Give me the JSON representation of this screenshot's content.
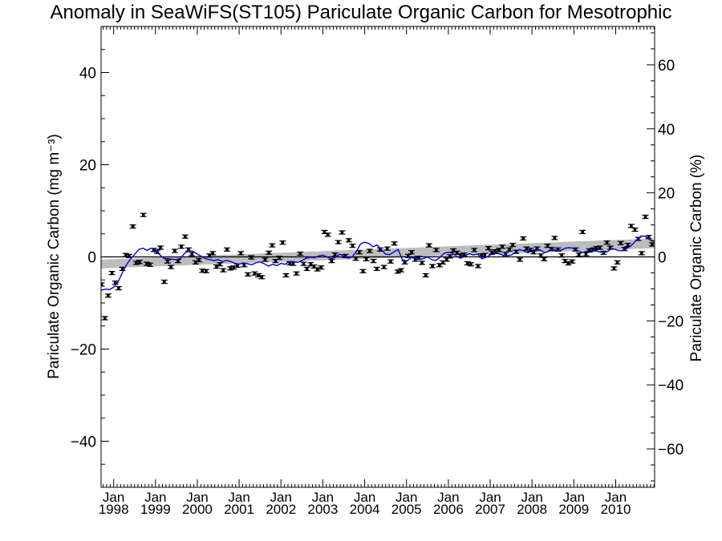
{
  "chart_data": {
    "type": "line",
    "title": "Anomaly in SeaWiFS(ST105) Pariculate Organic Carbon for Mesotrophic",
    "ylabel": "Pariculate Organic Carbon (mg m⁻³)",
    "ylabel_right": "Pariculate Organic Carbon (%)",
    "xlim": [
      1997.7,
      2010.93
    ],
    "ylim": [
      -50,
      50
    ],
    "ylim_right": [
      -72,
      72
    ],
    "yticks": [
      -40,
      -20,
      0,
      20,
      40
    ],
    "yticks_right": [
      -60,
      -40,
      -20,
      0,
      20,
      40,
      60
    ],
    "xtick_labels": [
      {
        "x": 1998.0,
        "month": "Jan",
        "year": "1998"
      },
      {
        "x": 1999.0,
        "month": "Jan",
        "year": "1999"
      },
      {
        "x": 2000.0,
        "month": "Jan",
        "year": "2000"
      },
      {
        "x": 2001.0,
        "month": "Jan",
        "year": "2001"
      },
      {
        "x": 2002.0,
        "month": "Jan",
        "year": "2002"
      },
      {
        "x": 2003.0,
        "month": "Jan",
        "year": "2003"
      },
      {
        "x": 2004.0,
        "month": "Jan",
        "year": "2004"
      },
      {
        "x": 2005.0,
        "month": "Jan",
        "year": "2005"
      },
      {
        "x": 2006.0,
        "month": "Jan",
        "year": "2006"
      },
      {
        "x": 2007.0,
        "month": "Jan",
        "year": "2007"
      },
      {
        "x": 2008.0,
        "month": "Jan",
        "year": "2008"
      },
      {
        "x": 2009.0,
        "month": "Jan",
        "year": "2009"
      },
      {
        "x": 2010.0,
        "month": "Jan",
        "year": "2010"
      }
    ],
    "trend_band": {
      "x": [
        1997.7,
        2010.93
      ],
      "lower": [
        -2.5,
        1.9
      ],
      "upper": [
        -0.6,
        4.0
      ]
    },
    "zero_line": 0,
    "series": [
      {
        "role": "monthly-anomalies-with-error-bars",
        "color": "#000000",
        "x": [
          1997.71,
          1997.79,
          1997.87,
          1997.96,
          1998.04,
          1998.12,
          1998.21,
          1998.29,
          1998.37,
          1998.46,
          1998.54,
          1998.62,
          1998.71,
          1998.79,
          1998.87,
          1998.96,
          1999.04,
          1999.12,
          1999.21,
          1999.29,
          1999.37,
          1999.46,
          1999.54,
          1999.62,
          1999.71,
          1999.79,
          1999.87,
          1999.96,
          2000.04,
          2000.12,
          2000.21,
          2000.29,
          2000.37,
          2000.46,
          2000.54,
          2000.62,
          2000.71,
          2000.79,
          2000.87,
          2000.96,
          2001.04,
          2001.12,
          2001.21,
          2001.29,
          2001.37,
          2001.46,
          2001.54,
          2001.62,
          2001.71,
          2001.79,
          2001.87,
          2001.96,
          2002.04,
          2002.12,
          2002.21,
          2002.29,
          2002.37,
          2002.46,
          2002.54,
          2002.62,
          2002.71,
          2002.79,
          2002.87,
          2002.96,
          2003.04,
          2003.12,
          2003.21,
          2003.29,
          2003.37,
          2003.46,
          2003.54,
          2003.62,
          2003.71,
          2003.79,
          2003.87,
          2003.96,
          2004.04,
          2004.12,
          2004.21,
          2004.29,
          2004.37,
          2004.46,
          2004.54,
          2004.62,
          2004.71,
          2004.79,
          2004.87,
          2004.96,
          2005.04,
          2005.12,
          2005.21,
          2005.29,
          2005.37,
          2005.46,
          2005.54,
          2005.62,
          2005.71,
          2005.79,
          2005.87,
          2005.96,
          2006.04,
          2006.12,
          2006.21,
          2006.29,
          2006.37,
          2006.46,
          2006.54,
          2006.62,
          2006.71,
          2006.79,
          2006.87,
          2006.96,
          2007.04,
          2007.12,
          2007.21,
          2007.29,
          2007.37,
          2007.46,
          2007.54,
          2007.62,
          2007.71,
          2007.79,
          2007.87,
          2007.96,
          2008.04,
          2008.12,
          2008.21,
          2008.29,
          2008.37,
          2008.46,
          2008.54,
          2008.62,
          2008.71,
          2008.79,
          2008.87,
          2008.96,
          2009.04,
          2009.12,
          2009.21,
          2009.29,
          2009.37,
          2009.46,
          2009.54,
          2009.62,
          2009.71,
          2009.79,
          2009.87,
          2009.96,
          2010.04,
          2010.12,
          2010.21,
          2010.29,
          2010.37,
          2010.46,
          2010.54,
          2010.62,
          2010.71,
          2010.79,
          2010.87
        ],
        "values": [
          -6.0,
          -13.3,
          -8.4,
          -3.5,
          -5.6,
          -6.8,
          -2.6,
          0.4,
          0.2,
          6.6,
          -1.3,
          -1.1,
          9.1,
          -1.5,
          -1.7,
          1.5,
          1.1,
          2.0,
          -5.4,
          -1.0,
          -2.2,
          1.3,
          -0.9,
          2.2,
          4.4,
          1.6,
          0.6,
          -1.2,
          -0.7,
          -3.0,
          -3.1,
          0.3,
          0.8,
          -2.1,
          -1.6,
          -2.9,
          1.6,
          -2.5,
          -2.3,
          -1.9,
          0.8,
          -1.8,
          -3.8,
          -0.1,
          -3.6,
          -4.0,
          -4.4,
          -0.6,
          0.9,
          2.5,
          -0.9,
          -0.2,
          3.1,
          -4.0,
          -1.4,
          -1.5,
          -3.6,
          0.7,
          -1.5,
          -2.6,
          -1.6,
          -2.1,
          -2.7,
          -2.3,
          5.4,
          4.8,
          -0.9,
          0.5,
          3.2,
          5.3,
          0.2,
          3.6,
          2.4,
          -0.4,
          1.0,
          -3.1,
          -0.5,
          1.3,
          -0.9,
          -2.6,
          1.6,
          -2.2,
          1.8,
          -1.0,
          2.9,
          -3.2,
          -2.9,
          -1.2,
          0.2,
          1.0,
          -0.6,
          -0.2,
          -1.3,
          -4.0,
          2.5,
          -2.0,
          1.5,
          -1.8,
          -1.2,
          -0.6,
          0.1,
          1.4,
          0.9,
          0.3,
          0.5,
          -1.4,
          -1.6,
          1.5,
          -2.0,
          0.3,
          0.4,
          1.9,
          0.9,
          1.2,
          1.5,
          2.2,
          0.6,
          1.6,
          2.6,
          1.1,
          -0.6,
          4.0,
          1.8,
          1.5,
          1.0,
          1.8,
          0.3,
          -0.5,
          2.4,
          1.7,
          4.1,
          1.6,
          0.3,
          -0.9,
          -1.4,
          -1.0,
          1.6,
          0.5,
          5.4,
          0.6,
          1.4,
          1.6,
          1.9,
          2.0,
          0.9,
          3.1,
          2.0,
          -2.5,
          -1.2,
          3.0,
          1.7,
          2.6,
          6.7,
          5.9,
          3.9,
          0.8,
          8.7,
          4.3,
          2.7
        ],
        "error": 0.35
      },
      {
        "role": "smoothed-anomaly",
        "color": "#0000e0",
        "x": [
          1997.71,
          1997.8,
          1997.9,
          1998.0,
          1998.1,
          1998.2,
          1998.3,
          1998.4,
          1998.5,
          1998.6,
          1998.7,
          1998.8,
          1998.9,
          1999.0,
          1999.1,
          1999.2,
          1999.3,
          1999.4,
          1999.5,
          1999.6,
          1999.7,
          1999.8,
          1999.9,
          2000.0,
          2000.1,
          2000.2,
          2000.3,
          2000.4,
          2000.5,
          2000.6,
          2000.7,
          2000.8,
          2000.9,
          2001.0,
          2001.1,
          2001.2,
          2001.3,
          2001.4,
          2001.5,
          2001.6,
          2001.7,
          2001.8,
          2001.9,
          2002.0,
          2002.1,
          2002.2,
          2002.3,
          2002.4,
          2002.5,
          2002.6,
          2002.7,
          2002.8,
          2002.9,
          2003.0,
          2003.1,
          2003.2,
          2003.3,
          2003.4,
          2003.5,
          2003.6,
          2003.7,
          2003.8,
          2003.9,
          2004.0,
          2004.1,
          2004.2,
          2004.3,
          2004.4,
          2004.5,
          2004.6,
          2004.7,
          2004.8,
          2004.9,
          2005.0,
          2005.1,
          2005.2,
          2005.3,
          2005.4,
          2005.5,
          2005.6,
          2005.7,
          2005.8,
          2005.9,
          2006.0,
          2006.1,
          2006.2,
          2006.3,
          2006.4,
          2006.5,
          2006.6,
          2006.7,
          2006.8,
          2006.9,
          2007.0,
          2007.1,
          2007.2,
          2007.3,
          2007.4,
          2007.5,
          2007.6,
          2007.7,
          2007.8,
          2007.9,
          2008.0,
          2008.1,
          2008.2,
          2008.3,
          2008.4,
          2008.5,
          2008.6,
          2008.7,
          2008.8,
          2008.9,
          2009.0,
          2009.1,
          2009.2,
          2009.3,
          2009.4,
          2009.5,
          2009.6,
          2009.7,
          2009.8,
          2009.9,
          2010.0,
          2010.1,
          2010.2,
          2010.3,
          2010.4,
          2010.5,
          2010.6,
          2010.7,
          2010.8,
          2010.9
        ],
        "values": [
          -7.2,
          -7.0,
          -7.1,
          -6.6,
          -5.5,
          -3.6,
          -1.8,
          -0.5,
          0.5,
          1.6,
          1.9,
          1.4,
          1.9,
          1.6,
          0.5,
          -0.3,
          -0.4,
          -0.5,
          -0.6,
          -0.3,
          0.8,
          1.3,
          1.2,
          0.6,
          0.1,
          -0.4,
          -0.6,
          -0.8,
          -0.6,
          -1.0,
          -0.8,
          -1.0,
          -1.4,
          -1.6,
          -1.3,
          -1.5,
          -1.7,
          -1.3,
          -1.1,
          -1.5,
          -2.0,
          -1.6,
          -1.9,
          -1.4,
          -1.6,
          -1.0,
          -1.0,
          -1.2,
          -0.8,
          -0.3,
          -0.1,
          -0.2,
          0.2,
          0.4,
          0.0,
          -0.4,
          -0.1,
          0.6,
          0.2,
          -0.3,
          0.0,
          1.1,
          2.8,
          3.2,
          2.9,
          2.2,
          2.6,
          1.6,
          0.6,
          0.5,
          1.1,
          1.6,
          -0.6,
          -0.9,
          -0.3,
          0.1,
          -0.5,
          -0.4,
          0.0,
          -0.6,
          -0.8,
          -0.1,
          0.8,
          1.0,
          0.8,
          0.1,
          -0.3,
          0.3,
          0.7,
          0.4,
          0.6,
          -0.4,
          -0.1,
          0.4,
          0.8,
          0.7,
          0.4,
          0.3,
          0.4,
          0.9,
          1.6,
          1.3,
          0.9,
          1.3,
          1.7,
          1.5,
          0.9,
          1.2,
          1.7,
          1.3,
          1.5,
          1.9,
          2.0,
          1.8,
          1.3,
          1.0,
          1.2,
          1.6,
          1.4,
          1.1,
          1.0,
          1.1,
          1.8,
          1.6,
          1.3,
          1.5,
          2.0,
          2.7,
          3.7,
          4.5,
          4.5,
          3.8,
          3.3
        ]
      }
    ]
  }
}
